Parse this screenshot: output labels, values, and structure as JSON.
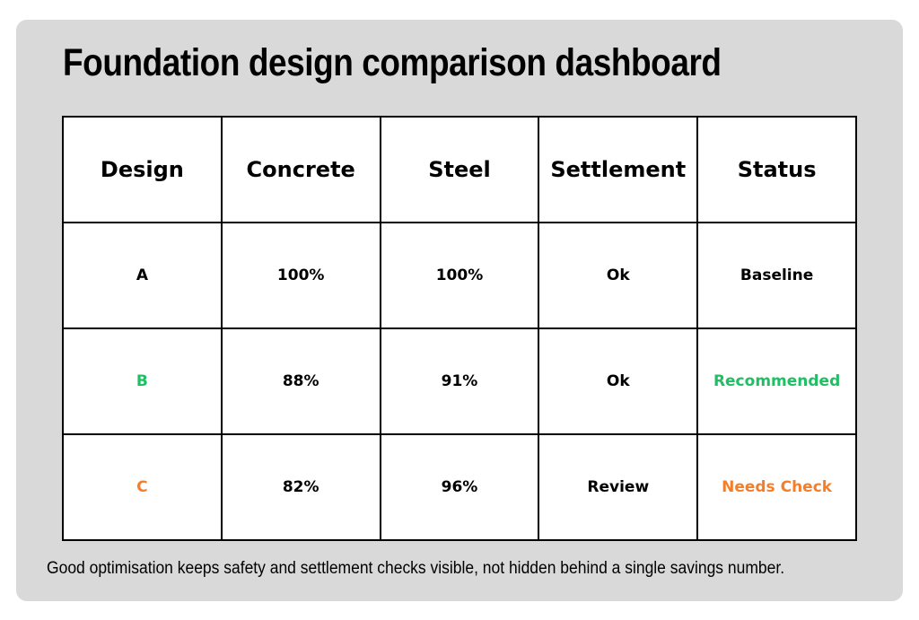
{
  "title": "Foundation design comparison dashboard",
  "table": {
    "headers": [
      "Design",
      "Concrete",
      "Steel",
      "Settlement",
      "Status"
    ],
    "rows": [
      {
        "design": "A",
        "concrete": "100%",
        "steel": "100%",
        "settlement": "Ok",
        "status": "Baseline"
      },
      {
        "design": "B",
        "concrete": "88%",
        "steel": "91%",
        "settlement": "Ok",
        "status": "Recommended"
      },
      {
        "design": "C",
        "concrete": "82%",
        "steel": "96%",
        "settlement": "Review",
        "status": "Needs Check"
      }
    ]
  },
  "footnote": "Good optimisation keeps safety and settlement checks visible, not hidden behind a single savings number.",
  "colors": {
    "recommended": "#1fbf63",
    "needs_check": "#f47f2a",
    "panel_background": "#d9d9d9"
  }
}
